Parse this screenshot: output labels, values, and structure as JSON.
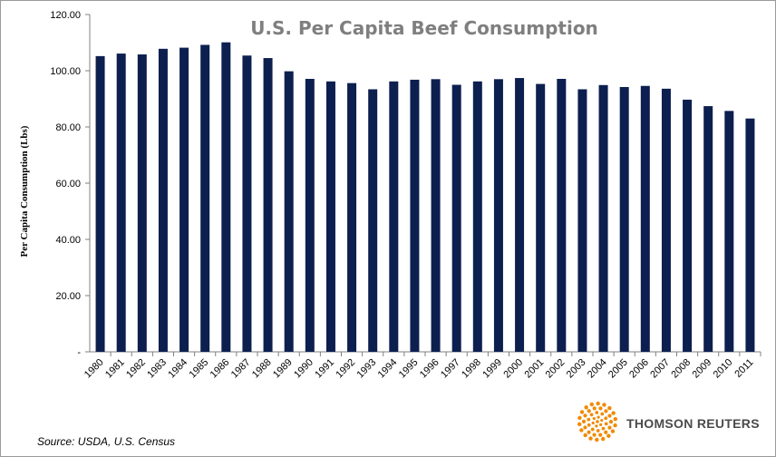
{
  "chart_data": {
    "type": "bar",
    "title": "U.S. Per Capita Beef Consumption",
    "xlabel": "",
    "ylabel": "Per Capita Consumption (Lbs)",
    "ylim": [
      0,
      120
    ],
    "yticks": [
      0,
      20,
      40,
      60,
      80,
      100,
      120
    ],
    "ytick_labels": [
      "-",
      "20.00",
      "40.00",
      "60.00",
      "80.00",
      "100.00",
      "120.00"
    ],
    "grid": false,
    "bar_color": "#0c1f4f",
    "categories": [
      "1980",
      "1981",
      "1982",
      "1983",
      "1984",
      "1985",
      "1986",
      "1987",
      "1988",
      "1989",
      "1990",
      "1991",
      "1992",
      "1993",
      "1994",
      "1995",
      "1996",
      "1997",
      "1998",
      "1999",
      "2000",
      "2001",
      "2002",
      "2003",
      "2004",
      "2005",
      "2006",
      "2007",
      "2008",
      "2009",
      "2010",
      "2011"
    ],
    "values": [
      105.2,
      106.1,
      105.8,
      107.8,
      108.2,
      109.2,
      110.1,
      105.4,
      104.5,
      99.8,
      97.1,
      96.2,
      95.6,
      93.4,
      96.2,
      96.8,
      97.0,
      95.0,
      96.2,
      97.0,
      97.4,
      95.3,
      97.1,
      93.4,
      94.9,
      94.2,
      94.6,
      93.6,
      89.7,
      87.4,
      85.7,
      83.0
    ]
  },
  "source_note": "Source: USDA, U.S. Census",
  "logo": {
    "text": "THOMSON REUTERS",
    "icon": "thomson-reuters-logo-icon",
    "color": "#f08a00"
  }
}
